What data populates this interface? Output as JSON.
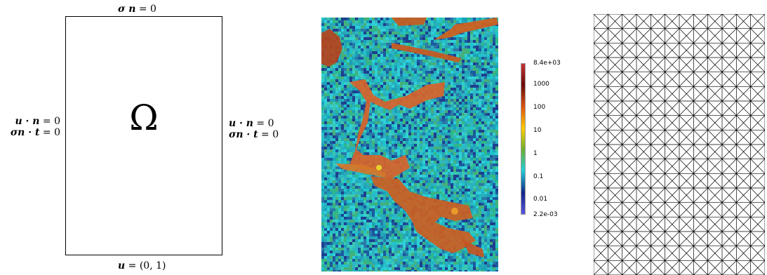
{
  "domain_panel": {
    "omega_symbol": "Ω",
    "top_bc": {
      "lhs": "σ n",
      "rhs": " = 0"
    },
    "bottom_bc": {
      "lhs": "u",
      "rhs": " = (0, 1)"
    },
    "left_bc": {
      "line1": {
        "lhs": "u · n",
        "rhs": " = 0"
      },
      "line2": {
        "lhs": "σn · t",
        "rhs": " = 0"
      }
    },
    "right_bc": {
      "line1": {
        "lhs": "u · n",
        "rhs": " = 0"
      },
      "line2": {
        "lhs": "σn · t",
        "rhs": " = 0"
      }
    }
  },
  "colorbar": {
    "scale": "log",
    "min": 0.0022,
    "max": 8400,
    "labels": [
      "8.4e+03",
      "1000",
      "100",
      "10",
      "1",
      "0.1",
      "0.01",
      "2.2e-03"
    ],
    "label_values": [
      8400,
      1000,
      100,
      10,
      1,
      0.1,
      0.01,
      0.0022
    ],
    "colors": [
      "#c83333",
      "#6a0a0a",
      "#e0560f",
      "#ffcc00",
      "#6cb02e",
      "#21cfd6",
      "#12248a",
      "#5a55e0"
    ]
  },
  "mesh": {
    "cols": 12,
    "rows": 18,
    "line_color": "#000000"
  }
}
